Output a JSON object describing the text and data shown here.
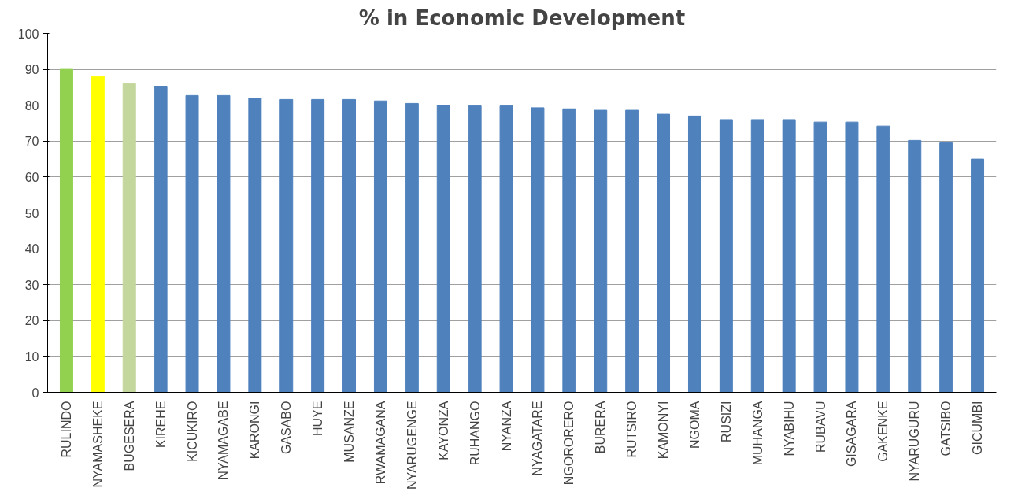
{
  "chart_data": {
    "type": "bar",
    "title": "% in Economic Development",
    "categories": [
      "RULINDO",
      "NYAMASHEKE",
      "BUGESERA",
      "KIREHE",
      "KICUKIRO",
      "NYAMAGABE",
      "KARONGI",
      "GASABO",
      "HUYE",
      "MUSANZE",
      "RWAMAGANA",
      "NYARUGENGE",
      "KAYONZA",
      "RUHANGO",
      "NYANZA",
      "NYAGATARE",
      "NGORORERO",
      "BURERA",
      "RUTSIRO",
      "KAMONYI",
      "NGOMA",
      "RUSIZI",
      "MUHANGA",
      "NYABIHU",
      "RUBAVU",
      "GISAGARA",
      "GAKENKE",
      "NYARUGURU",
      "GATSIBO",
      "GICUMBI"
    ],
    "values": [
      90,
      88,
      86,
      85.3,
      82.7,
      82.7,
      82,
      81.6,
      81.6,
      81.6,
      81.2,
      80.5,
      80,
      79.8,
      79.8,
      79.3,
      79,
      78.6,
      78.6,
      77.5,
      77,
      76,
      76,
      76,
      75.3,
      75.3,
      74.2,
      70.2,
      69.5,
      65
    ],
    "colors": [
      "#92d050",
      "#ffff00",
      "#c3d69b",
      "#4f81bd",
      "#4f81bd",
      "#4f81bd",
      "#4f81bd",
      "#4f81bd",
      "#4f81bd",
      "#4f81bd",
      "#4f81bd",
      "#4f81bd",
      "#4f81bd",
      "#4f81bd",
      "#4f81bd",
      "#4f81bd",
      "#4f81bd",
      "#4f81bd",
      "#4f81bd",
      "#4f81bd",
      "#4f81bd",
      "#4f81bd",
      "#4f81bd",
      "#4f81bd",
      "#4f81bd",
      "#4f81bd",
      "#4f81bd",
      "#4f81bd",
      "#4f81bd",
      "#4f81bd"
    ],
    "ylim": [
      0,
      100
    ],
    "yticks": [
      0,
      10,
      20,
      30,
      40,
      50,
      60,
      70,
      80,
      90,
      100
    ],
    "grid": "y"
  }
}
